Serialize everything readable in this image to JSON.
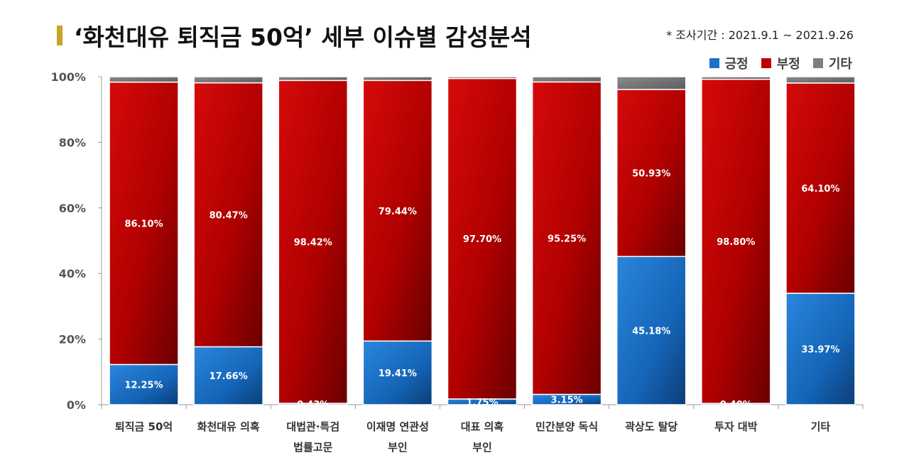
{
  "header": {
    "title": "‘화천대유 퇴직금 50억’ 세부 이슈별 감성분석",
    "period": "* 조사기간 : 2021.9.1 ~ 2021.9.26"
  },
  "legend": [
    {
      "label": "긍정",
      "color": "#1a73c8"
    },
    {
      "label": "부정",
      "color": "#c00000"
    },
    {
      "label": "기타",
      "color": "#7f7f7f"
    }
  ],
  "chart_data": {
    "type": "bar",
    "stacked": true,
    "title": "‘화천대유 퇴직금 50억’ 세부 이슈별 감성분석",
    "ylim": [
      0,
      100
    ],
    "yticks": [
      "0%",
      "20%",
      "40%",
      "60%",
      "80%",
      "100%"
    ],
    "categories": [
      [
        "퇴직금 50억"
      ],
      [
        "화천대유 의혹"
      ],
      [
        "대법관·특검",
        "법률고문"
      ],
      [
        "이재명 연관성",
        "부인"
      ],
      [
        "대표 의혹",
        "부인"
      ],
      [
        "민간분양 독식"
      ],
      [
        "곽상도 탈당"
      ],
      [
        "투자 대박"
      ],
      [
        "기타"
      ]
    ],
    "series": [
      {
        "name": "긍정",
        "color": "#1a73c8",
        "values": [
          12.25,
          17.66,
          0.43,
          19.41,
          1.75,
          3.15,
          45.18,
          0.4,
          33.97
        ],
        "labels": [
          "12.25%",
          "17.66%",
          "0.43%",
          "19.41%",
          "1.75%",
          "3.15%",
          "45.18%",
          "0.40%",
          "33.97%"
        ]
      },
      {
        "name": "부정",
        "color": "#c00000",
        "values": [
          86.1,
          80.47,
          98.42,
          79.44,
          97.7,
          95.25,
          50.93,
          98.8,
          64.1
        ],
        "labels": [
          "86.10%",
          "80.47%",
          "98.42%",
          "79.44%",
          "97.70%",
          "95.25%",
          "50.93%",
          "98.80%",
          "64.10%"
        ]
      },
      {
        "name": "기타",
        "color": "#7f7f7f",
        "values": [
          1.65,
          1.87,
          1.15,
          1.15,
          0.55,
          1.6,
          3.89,
          0.8,
          1.93
        ],
        "labels": []
      }
    ]
  }
}
